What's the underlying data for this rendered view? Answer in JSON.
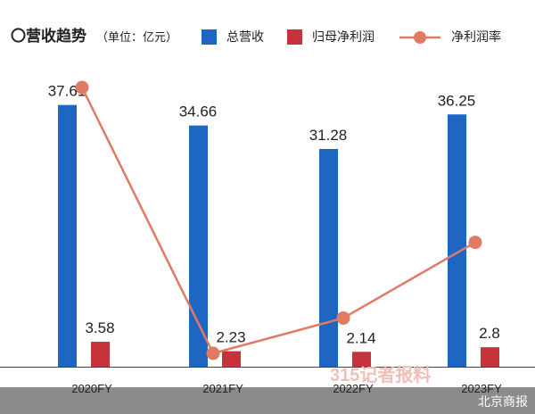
{
  "header": {
    "title": "〇营收趋势",
    "unit": "（单位：亿元）"
  },
  "watermark": "315记者报料",
  "credit": "北京商报",
  "colors": {
    "revenue": "#1f65c2",
    "profit": "#c7333a",
    "margin": "#e07a63",
    "footer": "#8b8b8b"
  },
  "chart_data": {
    "type": "bar",
    "categories": [
      "2020FY",
      "2021FY",
      "2022FY",
      "2023FY"
    ],
    "series": [
      {
        "name": "总营收",
        "kind": "bar",
        "values": [
          37.61,
          34.66,
          31.28,
          36.25
        ],
        "labels": [
          "37.61",
          "34.66",
          "31.28",
          "36.25"
        ]
      },
      {
        "name": "归母净利润",
        "kind": "bar",
        "values": [
          3.58,
          2.23,
          2.14,
          2.8
        ],
        "labels": [
          "3.58",
          "2.23",
          "2.14",
          "2.8"
        ]
      },
      {
        "name": "净利润率",
        "kind": "line",
        "values": [
          9.52,
          6.43,
          6.84,
          7.72
        ]
      }
    ],
    "ylim": [
      0,
      40
    ],
    "legend_position": "top",
    "grid": false
  }
}
